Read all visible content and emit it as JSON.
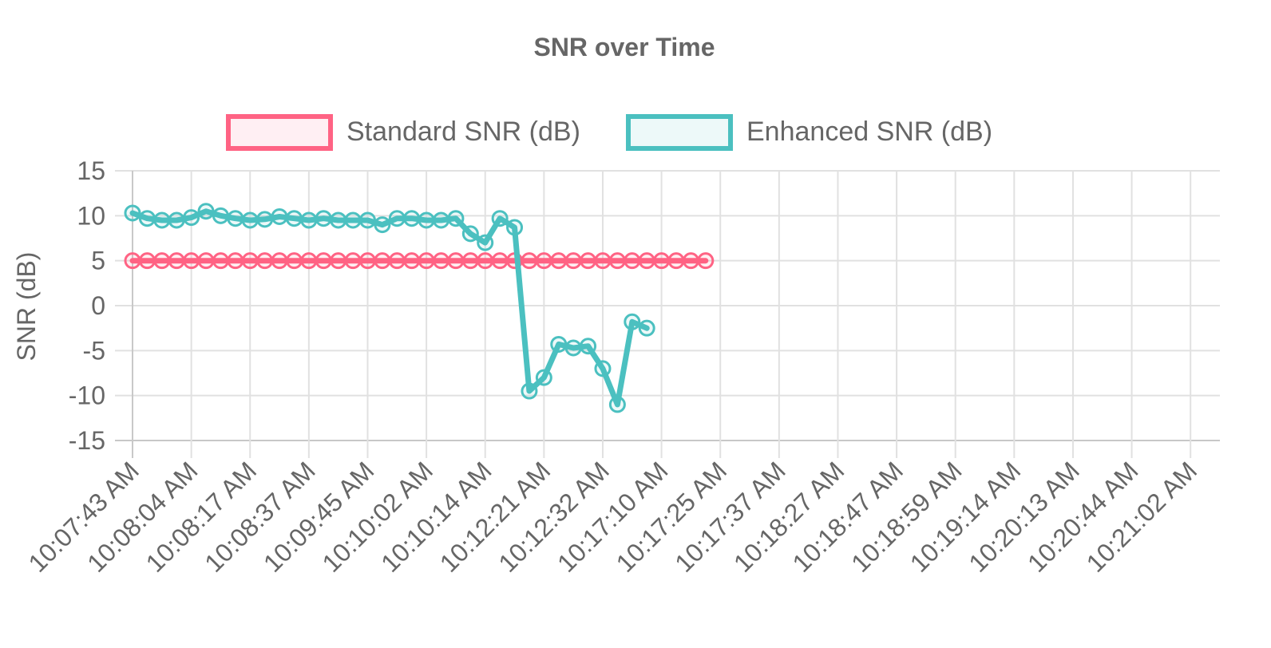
{
  "chart_data": {
    "type": "line",
    "title": "SNR over Time",
    "ylabel": "SNR (dB)",
    "xlabel": "",
    "ylim": [
      -15,
      15
    ],
    "yticks": [
      15,
      10,
      5,
      0,
      -5,
      -10,
      -15
    ],
    "x_tick_labels": [
      "10:07:43 AM",
      "10:08:04 AM",
      "10:08:17 AM",
      "10:08:37 AM",
      "10:09:45 AM",
      "10:10:02 AM",
      "10:10:14 AM",
      "10:12:21 AM",
      "10:12:32 AM",
      "10:17:10 AM",
      "10:17:25 AM",
      "10:17:37 AM",
      "10:18:27 AM",
      "10:18:47 AM",
      "10:18:59 AM",
      "10:19:14 AM",
      "10:20:13 AM",
      "10:20:44 AM",
      "10:21:02 AM"
    ],
    "point_count": 75,
    "points_per_tick": 4,
    "grid": true,
    "legend_position": "top",
    "series": [
      {
        "name": "Standard SNR (dB)",
        "color": "#ff6384",
        "fill": "rgba(255,99,132,0.1)",
        "values": [
          5,
          5,
          5,
          5,
          5,
          5,
          5,
          5,
          5,
          5,
          5,
          5,
          5,
          5,
          5,
          5,
          5,
          5,
          5,
          5,
          5,
          5,
          5,
          5,
          5,
          5,
          5,
          5,
          5,
          5,
          5,
          5,
          5,
          5,
          5,
          5,
          5,
          5,
          5,
          5
        ]
      },
      {
        "name": "Enhanced SNR (dB)",
        "color": "#4bc0c0",
        "fill": "rgba(75,192,192,0.1)",
        "values": [
          10.3,
          9.7,
          9.5,
          9.5,
          9.8,
          10.5,
          10.0,
          9.7,
          9.5,
          9.6,
          9.9,
          9.7,
          9.5,
          9.7,
          9.5,
          9.5,
          9.5,
          9.0,
          9.7,
          9.7,
          9.5,
          9.5,
          9.7,
          8.0,
          7.0,
          9.7,
          8.7,
          -9.5,
          -8.0,
          -4.3,
          -4.7,
          -4.5,
          -7.0,
          -11.0,
          -1.8,
          -2.5
        ]
      }
    ]
  }
}
